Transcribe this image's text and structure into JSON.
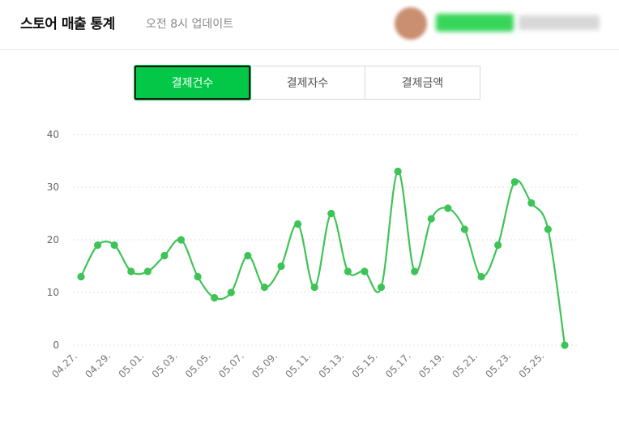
{
  "header": {
    "title": "스토어 매출 통계",
    "update_text": "오전 8시 업데이트"
  },
  "tabs": [
    {
      "label": "결제건수",
      "active": true
    },
    {
      "label": "결제자수",
      "active": false
    },
    {
      "label": "결제금액",
      "active": false
    }
  ],
  "colors": {
    "accent": "#03c747",
    "line": "#3ec456",
    "grid": "#e2e2e2"
  },
  "chart_data": {
    "type": "line",
    "title": "",
    "xlabel": "",
    "ylabel": "",
    "ylim": [
      0,
      40
    ],
    "yticks": [
      0,
      10,
      20,
      30,
      40
    ],
    "grid": true,
    "x": [
      "04.27.",
      "04.28.",
      "04.29.",
      "04.30.",
      "05.01.",
      "05.02.",
      "05.03.",
      "05.04.",
      "05.05.",
      "05.06.",
      "05.07.",
      "05.08.",
      "05.09.",
      "05.10.",
      "05.11.",
      "05.12.",
      "05.13.",
      "05.14.",
      "05.15.",
      "05.16.",
      "05.17.",
      "05.18.",
      "05.19.",
      "05.20.",
      "05.21.",
      "05.22.",
      "05.23.",
      "05.24.",
      "05.25.",
      "05.26."
    ],
    "xtick_labels": [
      "04.27.",
      "04.29.",
      "05.01.",
      "05.03.",
      "05.05.",
      "05.07.",
      "05.09.",
      "05.11.",
      "05.13.",
      "05.15.",
      "05.17.",
      "05.19.",
      "05.21.",
      "05.23.",
      "05.25."
    ],
    "series": [
      {
        "values": [
          13,
          19,
          19,
          14,
          14,
          17,
          20,
          13,
          9,
          10,
          17,
          11,
          15,
          23,
          11,
          25,
          14,
          14,
          11,
          33,
          14,
          24,
          26,
          22,
          13,
          19,
          31,
          27,
          22,
          0
        ]
      }
    ]
  }
}
